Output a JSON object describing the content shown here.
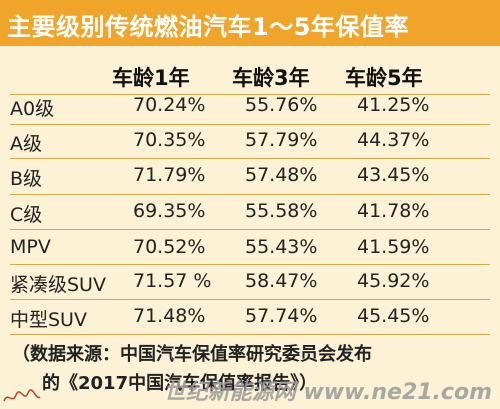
{
  "title": "主要级别传统燃油汽车1～5年保值率",
  "columns": [
    "车龄1年",
    "车龄3年",
    "车龄5年"
  ],
  "rows": [
    {
      "name": "A0级",
      "v": [
        "70.24%",
        "55.76%",
        "41.25%"
      ]
    },
    {
      "name": "A级",
      "v": [
        "70.35%",
        "57.79%",
        "44.37%"
      ]
    },
    {
      "name": "B级",
      "v": [
        "71.79%",
        "57.48%",
        "43.45%"
      ]
    },
    {
      "name": "C级",
      "v": [
        "69.35%",
        "55.58%",
        "41.78%"
      ]
    },
    {
      "name": "MPV",
      "v": [
        "70.52%",
        "55.43%",
        "41.59%"
      ]
    },
    {
      "name": "紧凑级SUV",
      "v": [
        "71.57 %",
        "58.47%",
        "45.92%"
      ]
    },
    {
      "name": "中型SUV",
      "v": [
        "71.48%",
        "57.74%",
        "45.45%"
      ]
    }
  ],
  "source_line1": "（数据来源：中国汽车保值率研究委员会发布",
  "source_line2": "的《2017中国汽车保值率报告》）",
  "watermark": "世纪新能源网 www.ne21.com",
  "colors": {
    "title_bar": "#f0a52a",
    "background": "#fdf2d6",
    "rule": "#d9a84a"
  }
}
